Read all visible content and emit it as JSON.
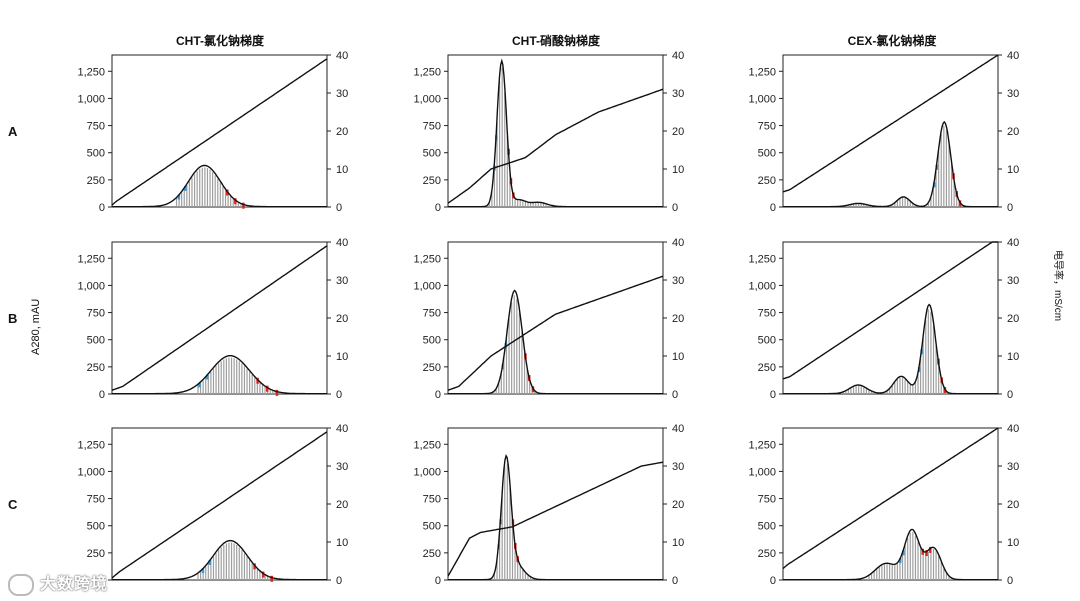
{
  "column_titles": [
    "CHT-氯化钠梯度",
    "CHT-硝酸钠梯度",
    "CEX-氯化钠梯度"
  ],
  "row_labels": [
    "A",
    "B",
    "C"
  ],
  "y_left_title": "A280, mAU",
  "y_right_title": "电导率，mS/cm",
  "y_left_ticks": [
    "0",
    "250",
    "500",
    "750",
    "1,000",
    "1,250"
  ],
  "y_right_ticks": [
    "0",
    "10",
    "20",
    "30",
    "40"
  ],
  "watermark": "大数跨境",
  "colors": {
    "trace": "#111111",
    "fraction_bar": "#9e9e9e",
    "marker_blue": "#3a9ad9",
    "marker_red": "#e0241b"
  },
  "chart_data": [
    {
      "type": "line",
      "row": "A",
      "column": "CHT-氯化钠梯度",
      "ylim_left": [
        0,
        1400
      ],
      "ylim_right": [
        0,
        40
      ],
      "peaks": [
        {
          "center": 0.43,
          "width": 0.075,
          "height": 380
        }
      ],
      "conductivity": {
        "x": [
          0,
          0.02,
          1
        ],
        "y": [
          0.5,
          1.5,
          39
        ]
      },
      "fractions": {
        "start": 0.3,
        "end": 0.75
      }
    },
    {
      "type": "line",
      "row": "A",
      "column": "CHT-硝酸钠梯度",
      "ylim_left": [
        0,
        1400
      ],
      "ylim_right": [
        0,
        40
      ],
      "peaks": [
        {
          "center": 0.25,
          "width": 0.022,
          "height": 1340
        },
        {
          "center": 0.33,
          "width": 0.03,
          "height": 60
        },
        {
          "center": 0.42,
          "width": 0.04,
          "height": 40
        }
      ],
      "conductivity": {
        "x": [
          0,
          0.1,
          0.2,
          0.28,
          0.36,
          0.5,
          0.7,
          1
        ],
        "y": [
          1,
          5,
          10,
          11.5,
          13,
          19,
          25,
          31
        ]
      },
      "fractions": {
        "start": 0.18,
        "end": 0.45
      }
    },
    {
      "type": "line",
      "row": "A",
      "column": "CEX-氯化钠梯度",
      "ylim_left": [
        0,
        1400
      ],
      "ylim_right": [
        0,
        40
      ],
      "peaks": [
        {
          "center": 0.35,
          "width": 0.04,
          "height": 30
        },
        {
          "center": 0.56,
          "width": 0.03,
          "height": 90
        },
        {
          "center": 0.75,
          "width": 0.03,
          "height": 780
        }
      ],
      "conductivity": {
        "x": [
          0,
          0.03,
          1
        ],
        "y": [
          4,
          4.5,
          40
        ]
      },
      "fractions": {
        "start": 0.28,
        "end": 0.9
      }
    },
    {
      "type": "line",
      "row": "B",
      "column": "CHT-氯化钠梯度",
      "ylim_left": [
        0,
        1400
      ],
      "ylim_right": [
        0,
        40
      ],
      "peaks": [
        {
          "center": 0.55,
          "width": 0.09,
          "height": 350
        }
      ],
      "conductivity": {
        "x": [
          0,
          0.05,
          1
        ],
        "y": [
          1,
          2,
          39
        ]
      },
      "fractions": {
        "start": 0.4,
        "end": 0.95
      }
    },
    {
      "type": "line",
      "row": "B",
      "column": "CHT-硝酸钠梯度",
      "ylim_left": [
        0,
        1400
      ],
      "ylim_right": [
        0,
        40
      ],
      "peaks": [
        {
          "center": 0.31,
          "width": 0.035,
          "height": 950
        }
      ],
      "conductivity": {
        "x": [
          0,
          0.05,
          0.2,
          0.5,
          1
        ],
        "y": [
          1,
          2,
          10,
          21,
          31
        ]
      },
      "fractions": {
        "start": 0.2,
        "end": 0.5
      }
    },
    {
      "type": "line",
      "row": "B",
      "column": "CEX-氯化钠梯度",
      "ylim_left": [
        0,
        1400
      ],
      "ylim_right": [
        0,
        40
      ],
      "peaks": [
        {
          "center": 0.35,
          "width": 0.04,
          "height": 80
        },
        {
          "center": 0.55,
          "width": 0.035,
          "height": 160
        },
        {
          "center": 0.68,
          "width": 0.03,
          "height": 820
        }
      ],
      "conductivity": {
        "x": [
          0,
          0.03,
          1
        ],
        "y": [
          4,
          4.5,
          41
        ]
      },
      "fractions": {
        "start": 0.28,
        "end": 0.9
      }
    },
    {
      "type": "line",
      "row": "C",
      "column": "CHT-氯化钠梯度",
      "ylim_left": [
        0,
        1400
      ],
      "ylim_right": [
        0,
        40
      ],
      "peaks": [
        {
          "center": 0.55,
          "width": 0.08,
          "height": 360
        }
      ],
      "conductivity": {
        "x": [
          0,
          0.03,
          1
        ],
        "y": [
          0.5,
          2,
          39
        ]
      },
      "fractions": {
        "start": 0.4,
        "end": 0.95
      }
    },
    {
      "type": "line",
      "row": "C",
      "column": "CHT-硝酸钠梯度",
      "ylim_left": [
        0,
        1400
      ],
      "ylim_right": [
        0,
        40
      ],
      "peaks": [
        {
          "center": 0.27,
          "width": 0.022,
          "height": 1050
        },
        {
          "center": 0.31,
          "width": 0.04,
          "height": 150
        }
      ],
      "conductivity": {
        "x": [
          0,
          0.05,
          0.1,
          0.15,
          0.3,
          0.6,
          0.9,
          1
        ],
        "y": [
          1,
          6,
          11,
          12.5,
          14,
          22,
          30,
          31
        ]
      },
      "fractions": {
        "start": 0.18,
        "end": 0.5
      }
    },
    {
      "type": "line",
      "row": "C",
      "column": "CEX-氯化钠梯度",
      "ylim_left": [
        0,
        1400
      ],
      "ylim_right": [
        0,
        40
      ],
      "peaks": [
        {
          "center": 0.48,
          "width": 0.05,
          "height": 150
        },
        {
          "center": 0.6,
          "width": 0.035,
          "height": 450
        },
        {
          "center": 0.7,
          "width": 0.035,
          "height": 290
        }
      ],
      "conductivity": {
        "x": [
          0,
          0.02,
          1
        ],
        "y": [
          3,
          4,
          40
        ]
      },
      "fractions": {
        "start": 0.4,
        "end": 0.85
      }
    }
  ]
}
